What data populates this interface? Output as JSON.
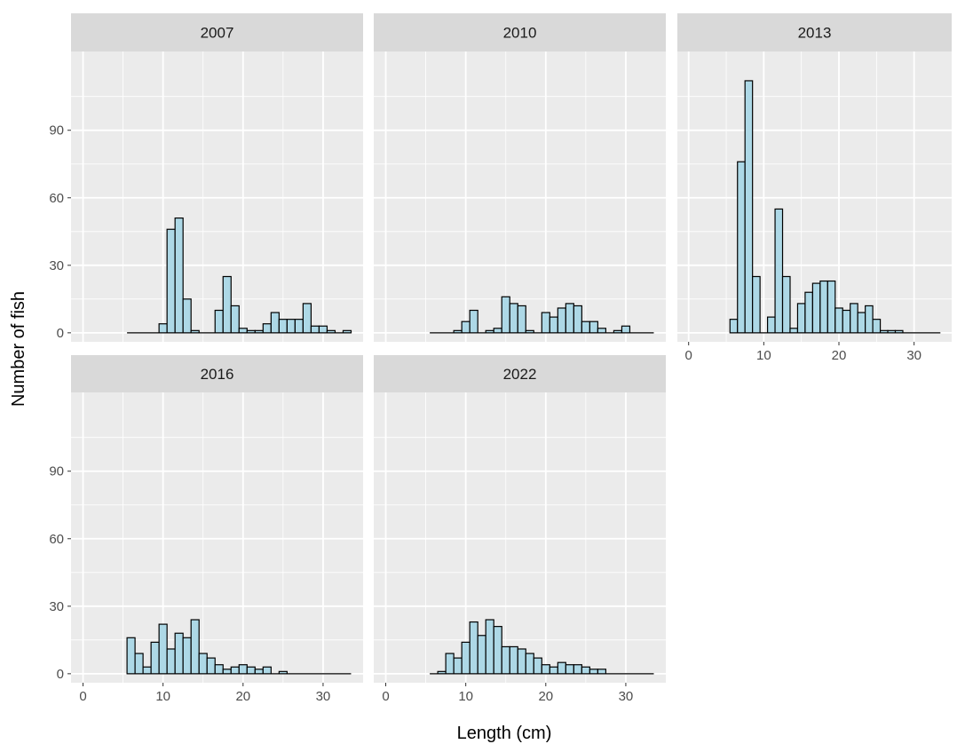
{
  "chart_data": {
    "type": "bar",
    "xlabel": "Length (cm)",
    "ylabel": "Number of fish",
    "xlim": [
      -1.5,
      35
    ],
    "ylim": [
      -4,
      125
    ],
    "x_ticks": [
      0,
      10,
      20,
      30
    ],
    "y_ticks": [
      0,
      30,
      60,
      90
    ],
    "bin_width": 1,
    "bin_starts": [
      5.5,
      6.5,
      7.5,
      8.5,
      9.5,
      10.5,
      11.5,
      12.5,
      13.5,
      14.5,
      15.5,
      16.5,
      17.5,
      18.5,
      19.5,
      20.5,
      21.5,
      22.5,
      23.5,
      24.5,
      25.5,
      26.5,
      27.5,
      28.5,
      29.5,
      30.5,
      31.5,
      32.5
    ],
    "grid": true,
    "fill_color": "#add8e6",
    "edge_color": "#000000",
    "panel_bg": "#ebebeb",
    "strip_bg": "#d9d9d9",
    "panels": [
      {
        "label": "2007",
        "values": [
          0,
          0,
          0,
          0,
          4,
          46,
          51,
          15,
          1,
          0,
          0,
          10,
          25,
          12,
          2,
          1,
          1,
          4,
          9,
          6,
          6,
          6,
          13,
          3,
          3,
          1,
          0,
          1
        ]
      },
      {
        "label": "2010",
        "values": [
          0,
          0,
          0,
          1,
          5,
          10,
          0,
          1,
          2,
          16,
          13,
          12,
          1,
          0,
          9,
          7,
          11,
          13,
          12,
          5,
          5,
          2,
          0,
          1,
          3,
          0,
          0,
          0
        ]
      },
      {
        "label": "2013",
        "values": [
          6,
          76,
          112,
          25,
          0,
          7,
          55,
          25,
          2,
          13,
          18,
          22,
          23,
          23,
          11,
          10,
          13,
          9,
          12,
          6,
          1,
          1,
          1,
          0,
          0,
          0,
          0,
          0
        ]
      },
      {
        "label": "2016",
        "values": [
          16,
          9,
          3,
          14,
          22,
          11,
          18,
          16,
          24,
          9,
          7,
          4,
          2,
          3,
          4,
          3,
          2,
          3,
          0,
          1,
          0,
          0,
          0,
          0,
          0,
          0,
          0,
          0
        ]
      },
      {
        "label": "2022",
        "values": [
          0,
          1,
          9,
          7,
          14,
          23,
          17,
          24,
          21,
          12,
          12,
          11,
          9,
          7,
          4,
          3,
          5,
          4,
          4,
          3,
          2,
          2,
          0,
          0,
          0,
          0,
          0,
          0
        ]
      }
    ]
  }
}
